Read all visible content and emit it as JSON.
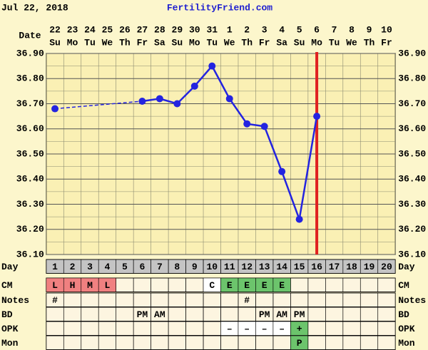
{
  "header": {
    "date": "Jul 22, 2018",
    "site": "FertilityFriend.com"
  },
  "chart_data": {
    "type": "line",
    "x_label": "Date",
    "categories": [
      "22",
      "23",
      "24",
      "25",
      "26",
      "27",
      "28",
      "29",
      "30",
      "31",
      "1",
      "2",
      "3",
      "4",
      "5",
      "6",
      "7",
      "8",
      "9",
      "10"
    ],
    "weekdays": [
      "Su",
      "Mo",
      "Tu",
      "We",
      "Th",
      "Fr",
      "Sa",
      "Su",
      "Mo",
      "Tu",
      "We",
      "Th",
      "Fr",
      "Sa",
      "Su",
      "Mo",
      "Tu",
      "We",
      "Th",
      "Fr"
    ],
    "values": [
      36.68,
      null,
      null,
      null,
      null,
      36.71,
      36.72,
      36.7,
      36.77,
      36.85,
      36.72,
      36.62,
      36.61,
      36.43,
      36.24,
      36.65,
      null,
      null,
      null,
      null
    ],
    "color": "#2424e0",
    "gap_line": "dashed",
    "current_day": 16,
    "current_day_color": "#e02020",
    "ylim": [
      36.1,
      36.9
    ],
    "yticks": [
      {
        "value": 36.1,
        "label": "36.10"
      },
      {
        "value": 36.2,
        "label": "36.20"
      },
      {
        "value": 36.3,
        "label": "36.30"
      },
      {
        "value": 36.4,
        "label": "36.40"
      },
      {
        "value": 36.5,
        "label": "36.50"
      },
      {
        "value": 36.6,
        "label": "36.60"
      },
      {
        "value": 36.7,
        "label": "36.70"
      },
      {
        "value": 36.8,
        "label": "36.80"
      },
      {
        "value": 36.9,
        "label": "36.90"
      }
    ],
    "grid": true,
    "rows": [
      {
        "label": "Day",
        "cells": [
          1,
          2,
          3,
          4,
          5,
          6,
          7,
          8,
          9,
          10,
          11,
          12,
          13,
          14,
          15,
          16,
          17,
          18,
          19,
          20
        ],
        "background": "#c4c4c4"
      },
      {
        "label": "CM",
        "cells": [
          "L",
          "H",
          "M",
          "L",
          null,
          null,
          null,
          null,
          null,
          "C",
          "E",
          "E",
          "E",
          "E",
          null,
          null,
          null,
          null,
          null,
          null
        ],
        "colors": [
          "#f08080",
          "#f08080",
          "#f08080",
          "#f08080",
          null,
          null,
          null,
          null,
          null,
          "#ffffff",
          "#6cc46c",
          "#6cc46c",
          "#6cc46c",
          "#6cc46c",
          null,
          null,
          null,
          null,
          null,
          null
        ]
      },
      {
        "label": "Notes",
        "cells": [
          "#",
          null,
          null,
          null,
          null,
          null,
          null,
          null,
          null,
          null,
          null,
          "#",
          null,
          null,
          null,
          null,
          null,
          null,
          null,
          null
        ]
      },
      {
        "label": "BD",
        "cells": [
          null,
          null,
          null,
          null,
          null,
          "PM",
          "AM",
          null,
          null,
          null,
          null,
          null,
          "PM",
          "AM",
          "PM",
          null,
          null,
          null,
          null,
          null
        ]
      },
      {
        "label": "OPK",
        "cells": [
          null,
          null,
          null,
          null,
          null,
          null,
          null,
          null,
          null,
          null,
          "–",
          "–",
          "–",
          "–",
          "+",
          null,
          null,
          null,
          null,
          null
        ],
        "colors": [
          null,
          null,
          null,
          null,
          null,
          null,
          null,
          null,
          null,
          null,
          "#ffffff",
          "#ffffff",
          "#ffffff",
          "#ffffff",
          "#6cc46c",
          null,
          null,
          null,
          null,
          null
        ]
      },
      {
        "label": "Mon",
        "cells": [
          null,
          null,
          null,
          null,
          null,
          null,
          null,
          null,
          null,
          null,
          null,
          null,
          null,
          null,
          "P",
          null,
          null,
          null,
          null,
          null
        ],
        "colors": [
          null,
          null,
          null,
          null,
          null,
          null,
          null,
          null,
          null,
          null,
          null,
          null,
          null,
          null,
          "#6cc46c",
          null,
          null,
          null,
          null,
          null
        ]
      }
    ]
  }
}
